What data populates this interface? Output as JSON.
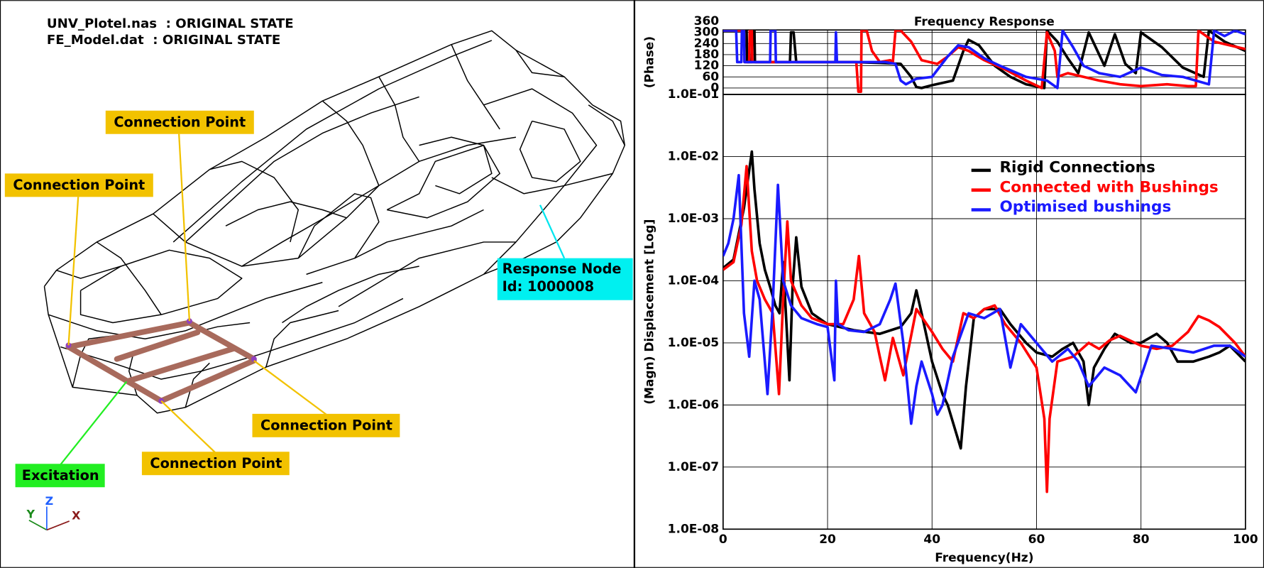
{
  "left_panel": {
    "header": [
      "UNV_Plotel.nas  : ORIGINAL STATE",
      "FE_Model.dat  : ORIGINAL STATE"
    ],
    "connection_labels": [
      "Connection Point",
      "Connection Point",
      "Connection Point",
      "Connection Point"
    ],
    "response_node": [
      "Response Node",
      "Id: 1000008"
    ],
    "excitation": "Excitation",
    "triad": [
      "Y",
      "Z",
      "X"
    ]
  },
  "chart_data": [
    {
      "type": "line",
      "title": "Frequency Response",
      "ylabel": "(Phase)",
      "xlim": [
        0,
        100
      ],
      "xticks": [
        0,
        20,
        40,
        60,
        80,
        100
      ],
      "ylim": [
        -35,
        313
      ],
      "yticks": [
        0,
        60,
        120,
        180,
        240,
        300,
        360
      ],
      "grid": true,
      "series": [
        {
          "color": "#000000",
          "x": [
            0,
            4.5,
            4.6,
            5.5,
            5.6,
            6,
            6.1,
            12.8,
            13,
            13.5,
            14,
            25,
            30,
            34,
            36,
            37,
            38,
            40,
            44,
            46,
            47,
            49,
            52,
            55,
            58,
            61.5,
            62,
            64,
            66,
            68,
            70,
            72,
            73,
            75,
            77,
            79,
            80,
            84,
            88,
            92,
            93,
            96,
            100
          ],
          "values": [
            310,
            310,
            140,
            140,
            310,
            310,
            140,
            140,
            300,
            300,
            140,
            140,
            135,
            130,
            60,
            5,
            0,
            15,
            40,
            200,
            260,
            230,
            120,
            60,
            20,
            0,
            310,
            250,
            160,
            80,
            300,
            180,
            120,
            290,
            130,
            80,
            300,
            220,
            110,
            60,
            310,
            250,
            200
          ]
        },
        {
          "color": "#ff0000",
          "x": [
            0,
            4,
            4.1,
            5,
            5.1,
            5.5,
            5.6,
            25.5,
            25.9,
            26.4,
            26.5,
            27.5,
            28.5,
            30,
            32,
            32.5,
            33,
            34,
            36,
            38,
            41,
            43,
            45,
            47,
            50,
            54,
            58,
            61,
            62,
            63.5,
            64,
            66,
            69,
            72,
            76,
            80,
            85,
            89,
            90.5,
            91,
            94,
            100
          ],
          "values": [
            310,
            310,
            140,
            140,
            310,
            310,
            140,
            140,
            -20,
            -20,
            310,
            310,
            200,
            140,
            150,
            140,
            310,
            310,
            250,
            150,
            130,
            170,
            220,
            200,
            150,
            100,
            40,
            0,
            300,
            200,
            60,
            80,
            60,
            40,
            20,
            10,
            20,
            10,
            10,
            310,
            250,
            210
          ]
        },
        {
          "color": "#1a1aff",
          "x": [
            0,
            2.5,
            2.7,
            3.5,
            3.6,
            4,
            4.1,
            9,
            9.1,
            10,
            10.1,
            21.5,
            21.6,
            21.8,
            31,
            33,
            34,
            35,
            37,
            40,
            43,
            45,
            47,
            50,
            53,
            58,
            62,
            64,
            65,
            67,
            69,
            72,
            76,
            80,
            84,
            88,
            93,
            94,
            96,
            98,
            100
          ],
          "values": [
            310,
            310,
            140,
            140,
            310,
            310,
            140,
            140,
            310,
            310,
            140,
            140,
            300,
            140,
            140,
            130,
            40,
            20,
            50,
            60,
            170,
            230,
            220,
            160,
            120,
            60,
            40,
            0,
            310,
            220,
            120,
            80,
            60,
            110,
            70,
            60,
            20,
            310,
            280,
            310,
            290
          ]
        }
      ]
    },
    {
      "type": "line",
      "xlabel": "Frequency(Hz)",
      "ylabel": "(Magn) Displacement [Log]",
      "xlim": [
        0,
        100
      ],
      "xticks": [
        0,
        20,
        40,
        60,
        80,
        100
      ],
      "ylim": [
        1e-08,
        0.1
      ],
      "log_y": true,
      "grid": true,
      "legend": "upper right",
      "yticks": [
        {
          "value": 1e-08,
          "label": "1.0E-08"
        },
        {
          "value": 1e-07,
          "label": "1.0E-07"
        },
        {
          "value": 1e-06,
          "label": "1.0E-06"
        },
        {
          "value": 1e-05,
          "label": "1.0E-05"
        },
        {
          "value": 0.0001,
          "label": "1.0E-04"
        },
        {
          "value": 0.001,
          "label": "1.0E-03"
        },
        {
          "value": 0.01,
          "label": "1.0E-02"
        },
        {
          "value": 0.1,
          "label": "1.0E-01"
        }
      ],
      "series": [
        {
          "name": "Rigid Connections",
          "color": "#000000",
          "x": [
            0,
            2,
            4,
            5,
            5.5,
            6,
            7,
            8,
            9,
            10,
            10.8,
            11.5,
            12.7,
            13.3,
            14,
            15,
            17,
            20,
            25,
            30,
            34,
            36,
            37,
            38,
            40,
            42,
            43,
            45.5,
            46.5,
            48,
            50,
            53,
            55,
            58,
            60,
            63,
            65,
            67,
            69,
            70,
            71,
            73,
            75,
            78,
            80,
            83,
            85,
            87,
            90,
            93,
            95,
            97,
            100
          ],
          "values": [
            0.00016,
            0.00022,
            0.0015,
            0.006,
            0.012,
            0.003,
            0.0004,
            0.00015,
            8e-05,
            4e-05,
            3e-05,
            0.0002,
            2.5e-06,
            8e-05,
            0.0005,
            8e-05,
            3e-05,
            2e-05,
            1.6e-05,
            1.4e-05,
            1.8e-05,
            3e-05,
            7e-05,
            3e-05,
            5e-06,
            1.5e-06,
            1e-06,
            2e-07,
            2e-06,
            2.5e-05,
            3.5e-05,
            3.5e-05,
            2e-05,
            1e-05,
            7e-06,
            6e-06,
            8e-06,
            1e-05,
            5e-06,
            1e-06,
            4e-06,
            8e-06,
            1.4e-05,
            1e-05,
            1e-05,
            1.4e-05,
            1e-05,
            5e-06,
            5e-06,
            6e-06,
            7e-06,
            9e-06,
            5e-06
          ]
        },
        {
          "name": "Connected with Bushings",
          "color": "#ff0000",
          "x": [
            0,
            2,
            3.5,
            4.5,
            5.5,
            6.5,
            8,
            9.5,
            10.7,
            11.5,
            12.3,
            13,
            15,
            17,
            20,
            23,
            25,
            26,
            27,
            29,
            30,
            31,
            32.5,
            34.5,
            37,
            40,
            42,
            44,
            46,
            48,
            50,
            52,
            54,
            57,
            60,
            61.5,
            62,
            62.5,
            64,
            67,
            70,
            72,
            74,
            76,
            80,
            83,
            86,
            89,
            91,
            93,
            95,
            98,
            100
          ],
          "values": [
            0.00015,
            0.0002,
            0.0008,
            0.007,
            0.0003,
            0.0001,
            5e-05,
            3e-05,
            1.5e-06,
            5e-05,
            0.0009,
            0.0001,
            4e-05,
            2.5e-05,
            2e-05,
            2e-05,
            5e-05,
            0.00025,
            3e-05,
            1.5e-05,
            6e-06,
            2.5e-06,
            1.2e-05,
            3e-06,
            3.5e-05,
            1.5e-05,
            8e-06,
            5e-06,
            3e-05,
            2.5e-05,
            3.5e-05,
            4e-05,
            2e-05,
            1e-05,
            4e-06,
            6e-07,
            4e-08,
            6e-07,
            5e-06,
            6e-06,
            1e-05,
            8e-06,
            1.1e-05,
            1.3e-05,
            9e-06,
            8e-06,
            9e-06,
            1.5e-05,
            2.7e-05,
            2.3e-05,
            1.8e-05,
            1e-05,
            6e-06
          ]
        },
        {
          "name": "Optimised bushings",
          "color": "#1a1aff",
          "x": [
            0,
            1,
            2,
            3,
            4,
            5,
            6,
            7,
            8.5,
            9.5,
            10.5,
            11.5,
            13,
            15,
            18,
            20,
            21.3,
            21.6,
            22,
            24,
            27,
            30,
            32,
            33,
            34.5,
            36,
            37,
            38,
            40,
            41,
            42,
            44,
            47,
            50,
            53,
            55,
            57,
            60,
            63,
            66,
            68,
            70,
            73,
            76,
            79,
            82,
            86,
            90,
            94,
            97,
            100
          ],
          "values": [
            0.00025,
            0.0004,
            0.001,
            0.005,
            3e-05,
            6e-06,
            0.0001,
            5e-05,
            1.5e-06,
            4e-05,
            0.0035,
            0.0001,
            4e-05,
            2.5e-05,
            2e-05,
            1.8e-05,
            2.5e-06,
            0.0001,
            2e-05,
            1.6e-05,
            1.5e-05,
            2e-05,
            5e-05,
            9e-05,
            1e-05,
            5e-07,
            2e-06,
            5e-06,
            1.5e-06,
            7e-07,
            1e-06,
            6e-06,
            3e-05,
            2.5e-05,
            3.5e-05,
            4e-06,
            2e-05,
            1e-05,
            5e-06,
            8e-06,
            5e-06,
            2e-06,
            4e-06,
            3e-06,
            1.6e-06,
            9e-06,
            8e-06,
            7e-06,
            9e-06,
            9e-06,
            6e-06
          ]
        }
      ]
    }
  ]
}
